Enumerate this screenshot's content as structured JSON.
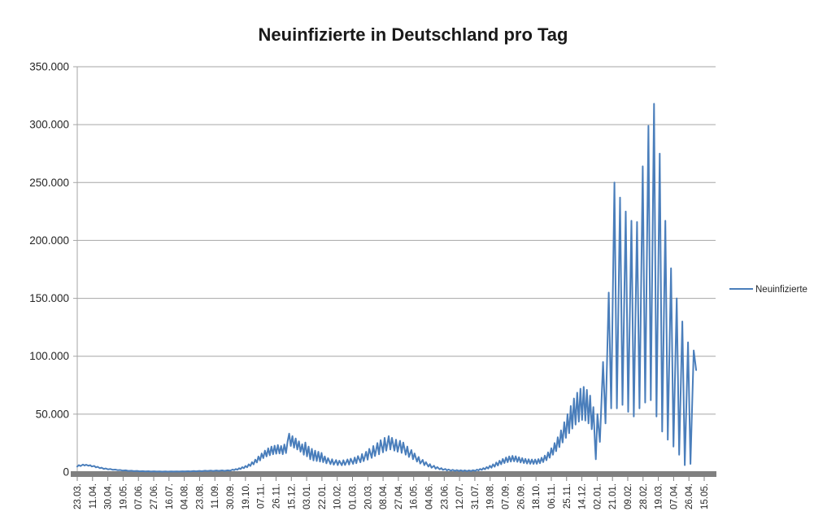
{
  "title": "Neuinfizierte in Deutschland pro Tag",
  "legend": {
    "items": [
      {
        "label": "Neuinfizierte",
        "color": "#4a7ebb"
      }
    ]
  },
  "colors": {
    "series": "#4a7ebb",
    "grid": "#a6a6a6",
    "axis_line": "#a6a6a6",
    "axis_bar": "#808080",
    "tick": "#808080",
    "text": "#262626",
    "title_text": "#1a1a1a",
    "background": "#ffffff"
  },
  "chart_data": {
    "type": "line",
    "title": "Neuinfizierte in Deutschland pro Tag",
    "series_name": "Neuinfizierte",
    "xlabel": "",
    "ylabel": "",
    "grid": "horizontal",
    "legend_position": "right",
    "ylim": [
      0,
      350000
    ],
    "y_ticks": [
      0,
      50000,
      100000,
      150000,
      200000,
      250000,
      300000,
      350000
    ],
    "y_tick_labels": [
      "0",
      "50.000",
      "100.000",
      "150.000",
      "200.000",
      "250.000",
      "300.000",
      "350.000"
    ],
    "x_tick_labels": [
      "23.03.",
      "11.04.",
      "30.04.",
      "19.05.",
      "07.06.",
      "27.06.",
      "16.07.",
      "04.08.",
      "23.08.",
      "11.09.",
      "30.09.",
      "19.10.",
      "07.11.",
      "26.11.",
      "15.12.",
      "03.01.",
      "22.01.",
      "10.02.",
      "01.03.",
      "20.03.",
      "08.04.",
      "27.04.",
      "16.05.",
      "04.06.",
      "23.06.",
      "12.07.",
      "31.07.",
      "19.08.",
      "07.09.",
      "26.09.",
      "18.10.",
      "06.11.",
      "25.11.",
      "14.12.",
      "02.01.",
      "21.01.",
      "09.02.",
      "28.02.",
      "19.03.",
      "07.04.",
      "26.04.",
      "15.05."
    ],
    "x_axis_note": "daily values, axis starts 23.03.2020 and ends 15.05.2022, one label every 19 days",
    "total_days": 775,
    "points": [
      [
        0,
        4700
      ],
      [
        2,
        6000
      ],
      [
        4,
        5100
      ],
      [
        7,
        6500
      ],
      [
        9,
        5600
      ],
      [
        11,
        6300
      ],
      [
        14,
        5400
      ],
      [
        16,
        6000
      ],
      [
        18,
        4800
      ],
      [
        21,
        5300
      ],
      [
        23,
        4000
      ],
      [
        25,
        4600
      ],
      [
        28,
        3300
      ],
      [
        30,
        3800
      ],
      [
        33,
        2700
      ],
      [
        35,
        3100
      ],
      [
        38,
        2300
      ],
      [
        41,
        2600
      ],
      [
        44,
        1900
      ],
      [
        47,
        2100
      ],
      [
        50,
        1600
      ],
      [
        53,
        1750
      ],
      [
        56,
        1300
      ],
      [
        60,
        1450
      ],
      [
        63,
        1000
      ],
      [
        67,
        1150
      ],
      [
        70,
        800
      ],
      [
        74,
        950
      ],
      [
        77,
        650
      ],
      [
        81,
        800
      ],
      [
        84,
        520
      ],
      [
        88,
        680
      ],
      [
        91,
        450
      ],
      [
        95,
        600
      ],
      [
        98,
        400
      ],
      [
        102,
        560
      ],
      [
        105,
        380
      ],
      [
        109,
        540
      ],
      [
        112,
        360
      ],
      [
        116,
        520
      ],
      [
        119,
        400
      ],
      [
        123,
        580
      ],
      [
        126,
        440
      ],
      [
        130,
        640
      ],
      [
        133,
        500
      ],
      [
        137,
        720
      ],
      [
        140,
        560
      ],
      [
        144,
        820
      ],
      [
        147,
        640
      ],
      [
        151,
        950
      ],
      [
        154,
        720
      ],
      [
        158,
        1100
      ],
      [
        161,
        820
      ],
      [
        165,
        1250
      ],
      [
        168,
        900
      ],
      [
        172,
        1350
      ],
      [
        175,
        950
      ],
      [
        179,
        1400
      ],
      [
        182,
        1000
      ],
      [
        186,
        1500
      ],
      [
        189,
        1100
      ],
      [
        192,
        2100
      ],
      [
        194,
        1600
      ],
      [
        196,
        2600
      ],
      [
        198,
        2000
      ],
      [
        200,
        3300
      ],
      [
        202,
        2600
      ],
      [
        204,
        4200
      ],
      [
        206,
        3300
      ],
      [
        208,
        5300
      ],
      [
        210,
        4100
      ],
      [
        212,
        6700
      ],
      [
        214,
        5200
      ],
      [
        216,
        8500
      ],
      [
        218,
        6600
      ],
      [
        220,
        10700
      ],
      [
        222,
        8200
      ],
      [
        224,
        13400
      ],
      [
        226,
        10000
      ],
      [
        228,
        16000
      ],
      [
        230,
        12000
      ],
      [
        232,
        18500
      ],
      [
        234,
        13500
      ],
      [
        236,
        20500
      ],
      [
        238,
        14500
      ],
      [
        240,
        22000
      ],
      [
        242,
        15300
      ],
      [
        244,
        22800
      ],
      [
        246,
        15800
      ],
      [
        248,
        23300
      ],
      [
        250,
        16000
      ],
      [
        252,
        22500
      ],
      [
        254,
        15400
      ],
      [
        256,
        23800
      ],
      [
        258,
        16400
      ],
      [
        260,
        26500
      ],
      [
        262,
        33200
      ],
      [
        264,
        22500
      ],
      [
        266,
        31000
      ],
      [
        268,
        21000
      ],
      [
        270,
        29000
      ],
      [
        272,
        19500
      ],
      [
        274,
        26500
      ],
      [
        276,
        17500
      ],
      [
        278,
        24000
      ],
      [
        280,
        15000
      ],
      [
        282,
        25500
      ],
      [
        284,
        13500
      ],
      [
        286,
        22000
      ],
      [
        288,
        11000
      ],
      [
        290,
        20000
      ],
      [
        292,
        10000
      ],
      [
        294,
        18500
      ],
      [
        296,
        9500
      ],
      [
        298,
        17500
      ],
      [
        300,
        9000
      ],
      [
        302,
        16500
      ],
      [
        304,
        8500
      ],
      [
        306,
        13500
      ],
      [
        308,
        7500
      ],
      [
        310,
        12000
      ],
      [
        313,
        6800
      ],
      [
        315,
        11000
      ],
      [
        317,
        6300
      ],
      [
        320,
        10300
      ],
      [
        322,
        6000
      ],
      [
        324,
        9800
      ],
      [
        327,
        5800
      ],
      [
        329,
        10200
      ],
      [
        331,
        6100
      ],
      [
        334,
        10800
      ],
      [
        336,
        6500
      ],
      [
        338,
        11500
      ],
      [
        341,
        7000
      ],
      [
        343,
        12500
      ],
      [
        345,
        7600
      ],
      [
        347,
        13800
      ],
      [
        350,
        8400
      ],
      [
        352,
        15500
      ],
      [
        354,
        9400
      ],
      [
        357,
        17500
      ],
      [
        359,
        10700
      ],
      [
        361,
        20000
      ],
      [
        364,
        12200
      ],
      [
        366,
        22500
      ],
      [
        368,
        13800
      ],
      [
        371,
        25000
      ],
      [
        373,
        15300
      ],
      [
        375,
        27500
      ],
      [
        378,
        17000
      ],
      [
        380,
        29500
      ],
      [
        382,
        18500
      ],
      [
        385,
        31000
      ],
      [
        387,
        19500
      ],
      [
        389,
        29500
      ],
      [
        392,
        18500
      ],
      [
        394,
        28000
      ],
      [
        396,
        17500
      ],
      [
        399,
        27000
      ],
      [
        401,
        16500
      ],
      [
        403,
        25500
      ],
      [
        406,
        15000
      ],
      [
        408,
        22000
      ],
      [
        410,
        13000
      ],
      [
        413,
        19000
      ],
      [
        415,
        11000
      ],
      [
        417,
        16000
      ],
      [
        420,
        9000
      ],
      [
        422,
        13000
      ],
      [
        424,
        7300
      ],
      [
        427,
        10500
      ],
      [
        429,
        5900
      ],
      [
        431,
        8500
      ],
      [
        434,
        4700
      ],
      [
        436,
        6800
      ],
      [
        438,
        3700
      ],
      [
        441,
        5400
      ],
      [
        443,
        2900
      ],
      [
        445,
        4300
      ],
      [
        448,
        2300
      ],
      [
        450,
        3400
      ],
      [
        452,
        1800
      ],
      [
        455,
        2700
      ],
      [
        457,
        1400
      ],
      [
        459,
        2200
      ],
      [
        462,
        1150
      ],
      [
        464,
        1900
      ],
      [
        467,
        1000
      ],
      [
        469,
        1700
      ],
      [
        472,
        900
      ],
      [
        474,
        1550
      ],
      [
        477,
        850
      ],
      [
        479,
        1450
      ],
      [
        482,
        800
      ],
      [
        484,
        1400
      ],
      [
        487,
        850
      ],
      [
        489,
        1600
      ],
      [
        492,
        1000
      ],
      [
        494,
        2100
      ],
      [
        496,
        1400
      ],
      [
        498,
        2700
      ],
      [
        500,
        1800
      ],
      [
        502,
        3400
      ],
      [
        504,
        2300
      ],
      [
        506,
        4300
      ],
      [
        508,
        3000
      ],
      [
        510,
        5400
      ],
      [
        512,
        3700
      ],
      [
        514,
        6700
      ],
      [
        516,
        4600
      ],
      [
        518,
        8200
      ],
      [
        520,
        5600
      ],
      [
        522,
        9800
      ],
      [
        524,
        6700
      ],
      [
        526,
        11300
      ],
      [
        528,
        7700
      ],
      [
        530,
        12600
      ],
      [
        532,
        8500
      ],
      [
        534,
        13500
      ],
      [
        536,
        9000
      ],
      [
        538,
        14000
      ],
      [
        540,
        9200
      ],
      [
        542,
        13600
      ],
      [
        544,
        8800
      ],
      [
        546,
        12800
      ],
      [
        548,
        8200
      ],
      [
        550,
        12000
      ],
      [
        552,
        7700
      ],
      [
        554,
        11400
      ],
      [
        556,
        7300
      ],
      [
        558,
        11000
      ],
      [
        560,
        7100
      ],
      [
        562,
        10800
      ],
      [
        564,
        7000
      ],
      [
        566,
        10800
      ],
      [
        568,
        7100
      ],
      [
        570,
        11200
      ],
      [
        572,
        7600
      ],
      [
        574,
        12400
      ],
      [
        576,
        8600
      ],
      [
        578,
        14200
      ],
      [
        580,
        10200
      ],
      [
        582,
        17000
      ],
      [
        584,
        12400
      ],
      [
        586,
        20600
      ],
      [
        588,
        15000
      ],
      [
        590,
        25000
      ],
      [
        592,
        18000
      ],
      [
        594,
        30000
      ],
      [
        596,
        21500
      ],
      [
        598,
        36000
      ],
      [
        600,
        25500
      ],
      [
        602,
        43000
      ],
      [
        604,
        29500
      ],
      [
        606,
        50000
      ],
      [
        608,
        33500
      ],
      [
        610,
        57000
      ],
      [
        612,
        37500
      ],
      [
        614,
        63500
      ],
      [
        616,
        41000
      ],
      [
        618,
        68500
      ],
      [
        620,
        43500
      ],
      [
        622,
        72000
      ],
      [
        624,
        45000
      ],
      [
        626,
        73500
      ],
      [
        628,
        44500
      ],
      [
        630,
        71000
      ],
      [
        632,
        42000
      ],
      [
        634,
        66000
      ],
      [
        636,
        37000
      ],
      [
        638,
        56000
      ],
      [
        640,
        24000
      ],
      [
        641,
        11000
      ],
      [
        643,
        50000
      ],
      [
        646,
        26000
      ],
      [
        650,
        95000
      ],
      [
        653,
        42000
      ],
      [
        657,
        155000
      ],
      [
        660,
        55000
      ],
      [
        664,
        250000
      ],
      [
        667,
        55000
      ],
      [
        671,
        237000
      ],
      [
        674,
        58000
      ],
      [
        678,
        225000
      ],
      [
        681,
        52000
      ],
      [
        685,
        217000
      ],
      [
        688,
        48000
      ],
      [
        692,
        216000
      ],
      [
        695,
        55000
      ],
      [
        699,
        264000
      ],
      [
        702,
        60000
      ],
      [
        706,
        299000
      ],
      [
        709,
        62000
      ],
      [
        713,
        318000
      ],
      [
        716,
        48000
      ],
      [
        720,
        275000
      ],
      [
        723,
        35000
      ],
      [
        727,
        217000
      ],
      [
        730,
        28000
      ],
      [
        734,
        176000
      ],
      [
        737,
        22000
      ],
      [
        741,
        150000
      ],
      [
        744,
        15000
      ],
      [
        748,
        130000
      ],
      [
        751,
        6000
      ],
      [
        755,
        112000
      ],
      [
        758,
        7000
      ],
      [
        762,
        105000
      ],
      [
        765,
        88000
      ]
    ]
  }
}
